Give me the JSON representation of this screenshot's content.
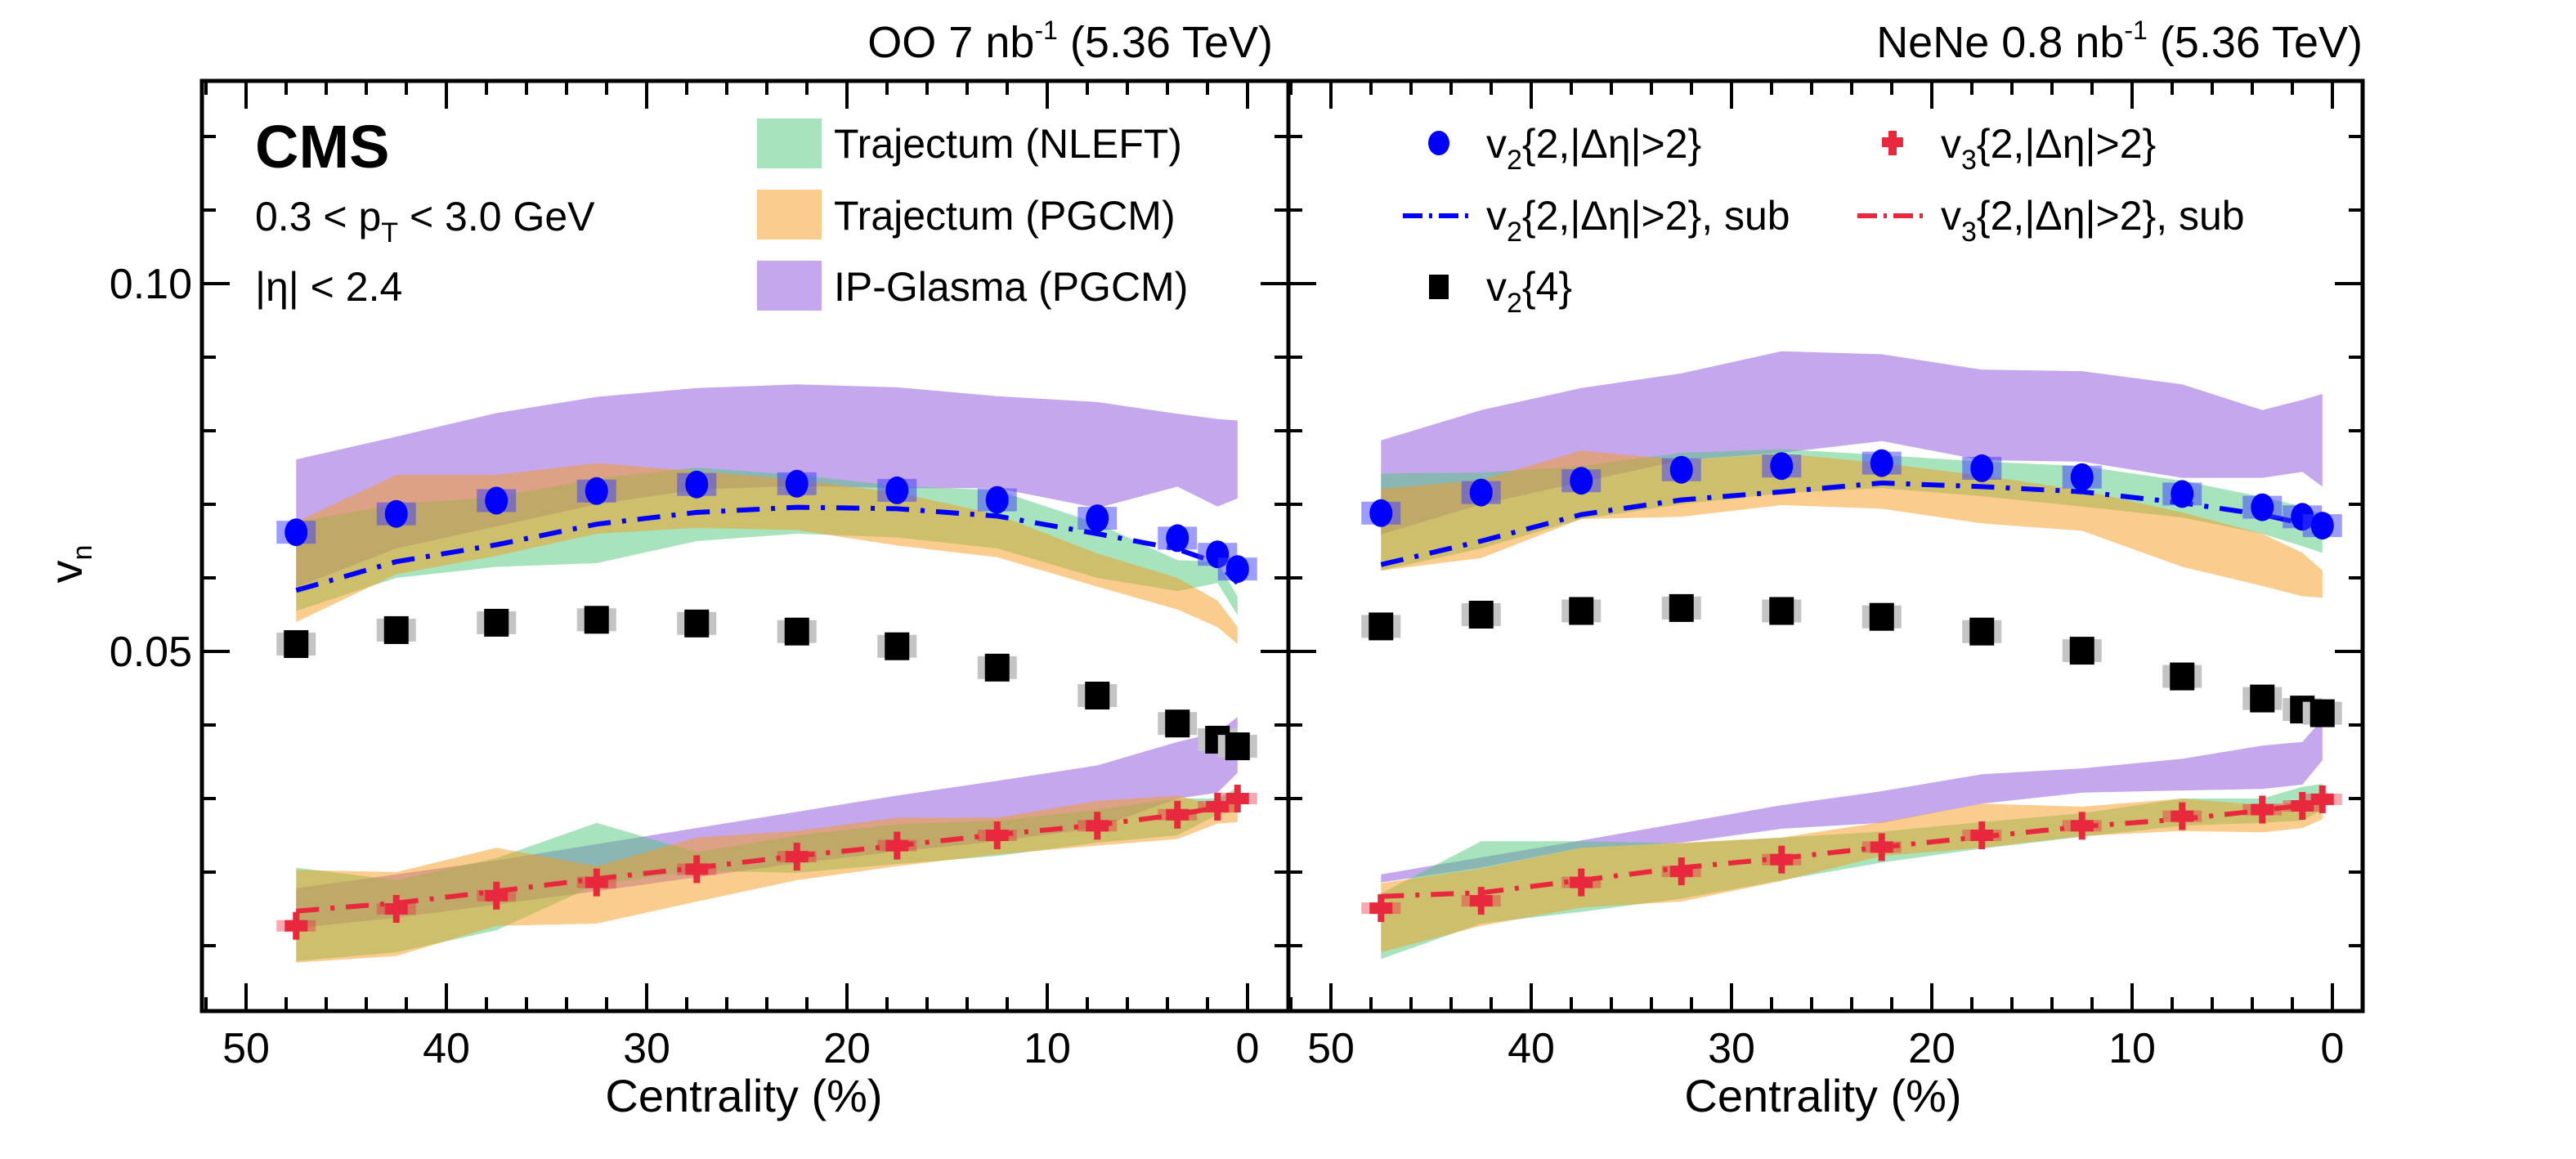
{
  "chart_data": {
    "type": "scatter",
    "title": "",
    "xlabel": "Centrality (%)",
    "ylabel": "v_n",
    "xlim": [
      52.2,
      -2.0
    ],
    "ylim": [
      0.001,
      0.1277
    ],
    "x_ticks": [
      50,
      40,
      30,
      20,
      10,
      0
    ],
    "x_tick_labels": [
      "50",
      "40",
      "30",
      "20",
      "10",
      "0"
    ],
    "y_ticks": [
      0.05,
      0.1
    ],
    "y_tick_labels": [
      "0.05",
      "0.10"
    ],
    "grid": false,
    "experiment_label": "CMS",
    "info_lines": [
      "0.3 < p_T < 3.0 GeV",
      "|η| < 2.4"
    ],
    "legend": {
      "models": [
        {
          "key": "nleft",
          "label": "Trajectum (NLEFT)",
          "color": "#a7e3bc"
        },
        {
          "key": "pgcm",
          "label": "Trajectum (PGCM)",
          "color": "#facd8e"
        },
        {
          "key": "ipglasma",
          "label": "IP-Glasma (PGCM)",
          "color": "#c5a7ed"
        }
      ],
      "data": [
        {
          "key": "v2_2",
          "label_main": "v",
          "label_sub": "2",
          "label_rest": "{2,|Δη|>2}",
          "color": "#0000ff",
          "marker": "circle"
        },
        {
          "key": "v3_2",
          "label_main": "v",
          "label_sub": "3",
          "label_rest": "{2,|Δη|>2}",
          "color": "#e8283c",
          "marker": "cross"
        },
        {
          "key": "v2_2_sub",
          "label_main": "v",
          "label_sub": "2",
          "label_rest": "{2,|Δη|>2}, sub",
          "color": "#0000ff",
          "marker": "dashdot"
        },
        {
          "key": "v3_2_sub",
          "label_main": "v",
          "label_sub": "3",
          "label_rest": "{2,|Δη|>2}, sub",
          "color": "#e8283c",
          "marker": "dashdot"
        },
        {
          "key": "v2_4",
          "label_main": "v",
          "label_sub": "2",
          "label_rest": "{4}",
          "color": "#000000",
          "marker": "square"
        }
      ]
    },
    "centrality": [
      47.5,
      42.5,
      37.5,
      32.5,
      27.5,
      22.5,
      17.5,
      12.5,
      7.5,
      3.5,
      1.5,
      0.5
    ],
    "panels": [
      {
        "key": "OO",
        "title_main": "OO 7 nb",
        "title_sup": "-1",
        "title_rest": " (5.36 TeV)",
        "series": {
          "v2_2": [
            0.0662,
            0.0687,
            0.0705,
            0.0718,
            0.0727,
            0.0728,
            0.0719,
            0.0706,
            0.0681,
            0.0654,
            0.0632,
            0.0612
          ],
          "v2_4": [
            0.051,
            0.0529,
            0.0539,
            0.0543,
            0.0538,
            0.0527,
            0.0507,
            0.0478,
            0.044,
            0.0402,
            0.038,
            0.0371
          ],
          "v3_2": [
            0.0127,
            0.015,
            0.0168,
            0.0186,
            0.0204,
            0.0221,
            0.0236,
            0.025,
            0.0263,
            0.0278,
            0.0289,
            0.03
          ],
          "v2_2_sub": [
            0.0583,
            0.0622,
            0.0645,
            0.0673,
            0.0689,
            0.0696,
            0.0694,
            0.0684,
            0.066,
            0.0639,
            0.062,
            0.0593
          ],
          "v3_2_sub": [
            0.0147,
            0.0158,
            0.0174,
            0.0191,
            0.0206,
            0.0222,
            0.0236,
            0.0251,
            0.0264,
            0.0278,
            0.0288,
            0.0298
          ]
        },
        "bands": {
          "ipglasma_v2": {
            "low": [
              0.0587,
              0.064,
              0.067,
              0.07,
              0.072,
              0.0725,
              0.0722,
              0.0722,
              0.0695,
              0.0724,
              0.0697,
              0.0708
            ],
            "high": [
              0.0761,
              0.0792,
              0.0824,
              0.0846,
              0.0858,
              0.0863,
              0.0859,
              0.0847,
              0.0839,
              0.0823,
              0.0816,
              0.0814
            ]
          },
          "nleft_v2": {
            "low": [
              0.0555,
              0.06,
              0.0615,
              0.062,
              0.065,
              0.066,
              0.0655,
              0.064,
              0.06,
              0.0582,
              0.0593,
              0.0549
            ],
            "high": [
              0.0676,
              0.07,
              0.071,
              0.0735,
              0.075,
              0.074,
              0.0725,
              0.0719,
              0.0674,
              0.0624,
              0.0622,
              0.0574
            ]
          },
          "pgcm_v2": {
            "low": [
              0.054,
              0.0605,
              0.063,
              0.066,
              0.0668,
              0.0665,
              0.0644,
              0.0628,
              0.0588,
              0.0557,
              0.0533,
              0.051
            ],
            "high": [
              0.0676,
              0.074,
              0.074,
              0.0756,
              0.0745,
              0.0733,
              0.0716,
              0.0686,
              0.0633,
              0.06,
              0.0569,
              0.0533
            ]
          },
          "ipglasma_v3": {
            "low": [
              0.0124,
              0.0138,
              0.0156,
              0.0174,
              0.0193,
              0.0212,
              0.0228,
              0.0242,
              0.026,
              0.03,
              0.0308,
              0.0335
            ],
            "high": [
              0.0178,
              0.0197,
              0.0216,
              0.0238,
              0.026,
              0.0282,
              0.0304,
              0.0324,
              0.0345,
              0.0377,
              0.039,
              0.0411
            ]
          },
          "nleft_v3": {
            "low": [
              0.0079,
              0.0091,
              0.0121,
              0.0183,
              0.0202,
              0.0199,
              0.0211,
              0.0222,
              0.024,
              0.025,
              0.0278,
              0.0282
            ],
            "high": [
              0.0206,
              0.0189,
              0.0219,
              0.0267,
              0.0227,
              0.025,
              0.0265,
              0.027,
              0.0285,
              0.03,
              0.03,
              0.0315
            ]
          },
          "pgcm_v3": {
            "low": [
              0.0077,
              0.0086,
              0.0127,
              0.013,
              0.016,
              0.0189,
              0.0208,
              0.0224,
              0.0236,
              0.0245,
              0.0266,
              0.0268
            ],
            "high": [
              0.0203,
              0.02,
              0.0233,
              0.0208,
              0.0247,
              0.0256,
              0.0274,
              0.0274,
              0.0297,
              0.0304,
              0.029,
              0.0304
            ]
          }
        }
      },
      {
        "key": "NeNe",
        "title_main": "NeNe 0.8 nb",
        "title_sup": "-1",
        "title_rest": " (5.36 TeV)",
        "series": {
          "v2_2": [
            0.0688,
            0.0716,
            0.0732,
            0.0747,
            0.0752,
            0.0756,
            0.0749,
            0.0737,
            0.0714,
            0.0696,
            0.0683,
            0.0671
          ],
          "v2_4": [
            0.0534,
            0.055,
            0.0555,
            0.0559,
            0.0555,
            0.0547,
            0.0527,
            0.0501,
            0.0466,
            0.0436,
            0.0421,
            0.0416
          ],
          "v3_2": [
            0.0151,
            0.0161,
            0.0186,
            0.0201,
            0.0217,
            0.0234,
            0.025,
            0.0263,
            0.0276,
            0.0285,
            0.029,
            0.0299
          ],
          "v2_2_sub": [
            0.0618,
            0.065,
            0.0686,
            0.0706,
            0.0717,
            0.0729,
            0.0724,
            0.0717,
            0.0702,
            0.0686,
            0.0674,
            0.0656
          ],
          "v3_2_sub": [
            0.0167,
            0.0172,
            0.0189,
            0.0206,
            0.0219,
            0.0234,
            0.0248,
            0.0262,
            0.0272,
            0.0284,
            0.0291,
            0.0296
          ]
        },
        "bands": {
          "ipglasma_v2": {
            "low": [
              0.0659,
              0.07,
              0.073,
              0.076,
              0.077,
              0.0786,
              0.076,
              0.0758,
              0.0736,
              0.0736,
              0.0744,
              0.0724
            ],
            "high": [
              0.0787,
              0.0828,
              0.0858,
              0.0878,
              0.0908,
              0.0904,
              0.0883,
              0.0881,
              0.0863,
              0.0828,
              0.0842,
              0.085
            ]
          },
          "nleft_v2": {
            "low": [
              0.061,
              0.064,
              0.068,
              0.07,
              0.0715,
              0.0722,
              0.0711,
              0.0697,
              0.0682,
              0.066,
              0.0643,
              0.0634
            ],
            "high": [
              0.0742,
              0.0743,
              0.0752,
              0.077,
              0.0775,
              0.0767,
              0.0758,
              0.0752,
              0.0732,
              0.071,
              0.0697,
              0.0686
            ]
          },
          "pgcm_v2": {
            "low": [
              0.061,
              0.0627,
              0.068,
              0.0683,
              0.0699,
              0.0694,
              0.0674,
              0.0664,
              0.0615,
              0.0589,
              0.0575,
              0.0573
            ],
            "high": [
              0.0721,
              0.0733,
              0.0773,
              0.076,
              0.0769,
              0.0756,
              0.0739,
              0.0719,
              0.0689,
              0.066,
              0.0634,
              0.061
            ]
          },
          "ipglasma_v3": {
            "low": [
              0.0186,
              0.0206,
              0.0233,
              0.024,
              0.0259,
              0.0267,
              0.0293,
              0.0308,
              0.0311,
              0.0313,
              0.0319,
              0.0352
            ],
            "high": [
              0.0197,
              0.022,
              0.0243,
              0.0267,
              0.0291,
              0.031,
              0.0333,
              0.0341,
              0.0354,
              0.0372,
              0.0377,
              0.0408
            ]
          },
          "nleft_v3": {
            "low": [
              0.0082,
              0.013,
              0.0146,
              0.0164,
              0.0189,
              0.0213,
              0.0232,
              0.0248,
              0.0263,
              0.0267,
              0.027,
              0.0285
            ],
            "high": [
              0.0171,
              0.0242,
              0.0242,
              0.0239,
              0.0247,
              0.0255,
              0.0268,
              0.028,
              0.03,
              0.03,
              0.0316,
              0.032
            ]
          },
          "pgcm_v3": {
            "low": [
              0.0091,
              0.0127,
              0.0152,
              0.016,
              0.0188,
              0.0222,
              0.0233,
              0.0249,
              0.0256,
              0.0254,
              0.026,
              0.0272
            ],
            "high": [
              0.0185,
              0.0205,
              0.0233,
              0.024,
              0.0247,
              0.0268,
              0.0293,
              0.0289,
              0.03,
              0.0291,
              0.0296,
              0.0293
            ]
          }
        }
      }
    ]
  }
}
